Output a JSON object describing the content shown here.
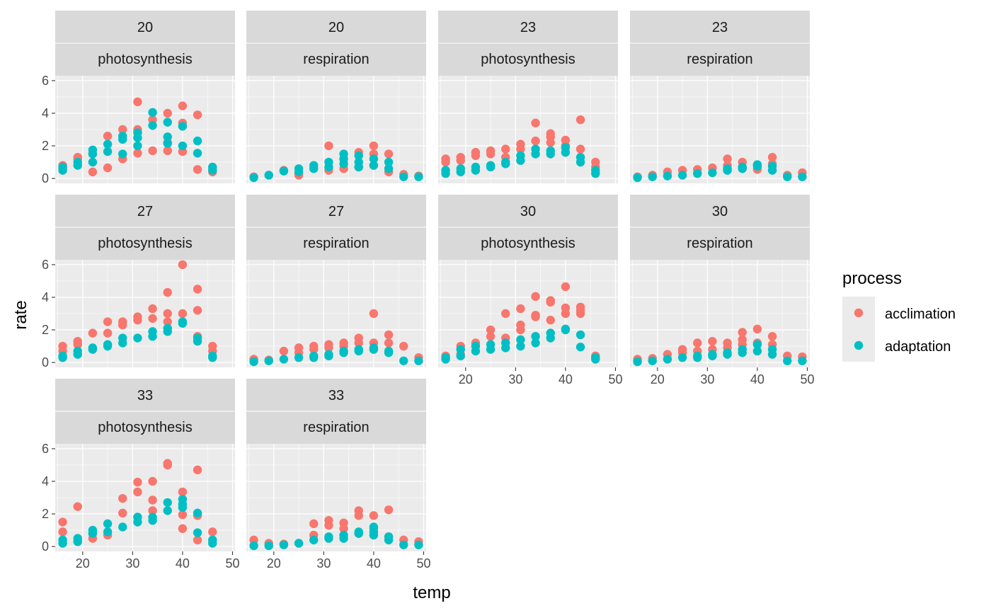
{
  "chart_data": {
    "type": "scatter",
    "xlabel": "temp",
    "ylabel": "rate",
    "xlim": [
      14.5,
      50.5
    ],
    "ylim": [
      -0.3,
      6.3
    ],
    "x_ticks": [
      20,
      30,
      40,
      50
    ],
    "y_ticks": [
      0,
      2,
      4,
      6
    ],
    "grid": true,
    "legend": {
      "title": "process",
      "placement": "right",
      "entries": [
        {
          "name": "acclimation",
          "color": "#F8766D"
        },
        {
          "name": "adaptation",
          "color": "#00BFC4"
        }
      ]
    },
    "colors": {
      "acclimation": "#F8766D",
      "adaptation": "#00BFC4"
    },
    "panels": [
      {
        "row_label": "20",
        "col_label": "photosynthesis",
        "series": [
          {
            "name": "acclimation",
            "x": [
              16,
              16,
              19,
              19,
              22,
              22,
              25,
              25,
              28,
              28,
              31,
              31,
              31,
              34,
              34,
              37,
              37,
              37,
              40,
              40,
              40,
              43,
              43,
              46,
              46
            ],
            "y": [
              0.8,
              0.6,
              1.3,
              1.2,
              0.4,
              1.5,
              2.6,
              0.65,
              3.0,
              1.2,
              4.7,
              3.0,
              1.55,
              1.7,
              3.6,
              4.0,
              1.7,
              2.2,
              4.45,
              3.4,
              1.65,
              3.9,
              0.55,
              0.55,
              0.4
            ]
          },
          {
            "name": "adaptation",
            "x": [
              16,
              16,
              19,
              19,
              22,
              22,
              22,
              25,
              25,
              28,
              28,
              28,
              31,
              31,
              31,
              34,
              34,
              37,
              37,
              37,
              40,
              40,
              43,
              43,
              46,
              46
            ],
            "y": [
              0.7,
              0.5,
              1.0,
              0.8,
              1.75,
              1.5,
              1.0,
              2.1,
              1.65,
              2.6,
              2.4,
              1.5,
              2.8,
              2.5,
              2.0,
              4.05,
              3.25,
              3.45,
              2.55,
              2.15,
              3.2,
              2.0,
              2.3,
              1.55,
              0.7,
              0.5
            ]
          }
        ]
      },
      {
        "row_label": "20",
        "col_label": "respiration",
        "series": [
          {
            "name": "acclimation",
            "x": [
              16,
              19,
              22,
              25,
              25,
              28,
              31,
              31,
              34,
              34,
              37,
              37,
              40,
              40,
              40,
              43,
              43,
              46,
              49
            ],
            "y": [
              0.1,
              0.2,
              0.5,
              0.3,
              0.2,
              0.6,
              2.0,
              0.5,
              1.2,
              0.6,
              1.6,
              0.7,
              2.0,
              1.5,
              0.8,
              1.5,
              0.4,
              0.25,
              0.15
            ]
          },
          {
            "name": "adaptation",
            "x": [
              16,
              19,
              22,
              25,
              25,
              28,
              28,
              31,
              31,
              34,
              34,
              34,
              37,
              37,
              37,
              40,
              40,
              43,
              43,
              46,
              49
            ],
            "y": [
              0.05,
              0.2,
              0.45,
              0.6,
              0.4,
              0.8,
              0.6,
              1.0,
              0.7,
              1.5,
              1.2,
              0.9,
              1.4,
              1.0,
              0.7,
              1.2,
              0.8,
              1.0,
              0.6,
              0.1,
              0.1
            ]
          }
        ]
      },
      {
        "row_label": "23",
        "col_label": "photosynthesis",
        "series": [
          {
            "name": "acclimation",
            "x": [
              16,
              16,
              19,
              19,
              22,
              22,
              25,
              25,
              28,
              28,
              31,
              31,
              34,
              34,
              37,
              37,
              37,
              40,
              40,
              43,
              43,
              46,
              46
            ],
            "y": [
              1.2,
              1.0,
              1.3,
              1.1,
              1.6,
              1.4,
              1.7,
              1.5,
              1.8,
              1.3,
              2.1,
              1.8,
              3.4,
              2.3,
              2.75,
              2.55,
              2.2,
              2.35,
              2.0,
              3.6,
              1.8,
              1.0,
              0.7
            ]
          },
          {
            "name": "adaptation",
            "x": [
              16,
              16,
              19,
              19,
              22,
              22,
              25,
              25,
              28,
              28,
              31,
              31,
              34,
              34,
              37,
              37,
              40,
              40,
              43,
              43,
              46,
              46
            ],
            "y": [
              0.5,
              0.3,
              0.6,
              0.4,
              0.7,
              0.5,
              0.8,
              0.7,
              1.0,
              0.9,
              1.4,
              1.1,
              1.8,
              1.5,
              1.7,
              1.5,
              1.9,
              1.6,
              1.3,
              1.0,
              0.5,
              0.3
            ]
          }
        ]
      },
      {
        "row_label": "23",
        "col_label": "respiration",
        "series": [
          {
            "name": "acclimation",
            "x": [
              16,
              19,
              22,
              25,
              28,
              31,
              34,
              34,
              37,
              37,
              40,
              40,
              43,
              43,
              46,
              49
            ],
            "y": [
              0.1,
              0.2,
              0.4,
              0.5,
              0.55,
              0.65,
              1.2,
              0.8,
              1.0,
              0.7,
              0.8,
              0.55,
              1.3,
              0.9,
              0.2,
              0.35
            ]
          },
          {
            "name": "adaptation",
            "x": [
              16,
              19,
              22,
              25,
              28,
              31,
              34,
              34,
              37,
              37,
              40,
              40,
              43,
              43,
              46,
              49
            ],
            "y": [
              0.05,
              0.1,
              0.15,
              0.2,
              0.3,
              0.35,
              0.6,
              0.5,
              0.7,
              0.6,
              0.85,
              0.75,
              0.75,
              0.5,
              0.1,
              0.1
            ]
          }
        ]
      },
      {
        "row_label": "27",
        "col_label": "photosynthesis",
        "series": [
          {
            "name": "acclimation",
            "x": [
              16,
              16,
              19,
              19,
              22,
              25,
              25,
              28,
              28,
              31,
              31,
              34,
              34,
              37,
              37,
              37,
              40,
              40,
              43,
              43,
              43,
              46,
              46
            ],
            "y": [
              1.0,
              0.7,
              1.3,
              1.1,
              1.8,
              2.5,
              1.8,
              2.5,
              2.3,
              2.8,
              2.6,
              3.3,
              2.7,
              4.3,
              3.0,
              2.5,
              6.0,
              3.0,
              4.5,
              3.2,
              1.6,
              1.0,
              0.7
            ]
          },
          {
            "name": "adaptation",
            "x": [
              16,
              16,
              19,
              19,
              22,
              22,
              25,
              25,
              28,
              28,
              31,
              34,
              34,
              37,
              37,
              40,
              40,
              43,
              43,
              46,
              46
            ],
            "y": [
              0.4,
              0.3,
              0.7,
              0.5,
              0.9,
              0.8,
              1.1,
              1.0,
              1.5,
              1.2,
              1.5,
              1.9,
              1.6,
              2.1,
              1.9,
              2.5,
              2.4,
              1.5,
              1.3,
              0.4,
              0.3
            ]
          }
        ]
      },
      {
        "row_label": "27",
        "col_label": "respiration",
        "series": [
          {
            "name": "acclimation",
            "x": [
              16,
              19,
              22,
              25,
              25,
              28,
              28,
              31,
              31,
              34,
              34,
              37,
              37,
              40,
              40,
              43,
              43,
              46,
              49
            ],
            "y": [
              0.2,
              0.15,
              0.7,
              0.9,
              0.6,
              1.0,
              0.8,
              1.1,
              0.9,
              1.2,
              1.0,
              1.5,
              1.2,
              3.0,
              1.2,
              1.7,
              1.2,
              1.0,
              0.3
            ]
          },
          {
            "name": "adaptation",
            "x": [
              16,
              19,
              22,
              25,
              28,
              28,
              31,
              31,
              34,
              34,
              37,
              37,
              40,
              40,
              43,
              43,
              46,
              49
            ],
            "y": [
              0.05,
              0.1,
              0.2,
              0.3,
              0.4,
              0.3,
              0.5,
              0.4,
              0.7,
              0.6,
              0.8,
              0.7,
              0.9,
              0.8,
              0.7,
              0.6,
              0.1,
              0.1
            ]
          }
        ]
      },
      {
        "row_label": "30",
        "col_label": "photosynthesis",
        "series": [
          {
            "name": "acclimation",
            "x": [
              16,
              19,
              19,
              22,
              25,
              25,
              28,
              28,
              31,
              31,
              31,
              34,
              34,
              34,
              37,
              37,
              37,
              40,
              40,
              40,
              43,
              43,
              43,
              46
            ],
            "y": [
              0.4,
              1.0,
              0.5,
              1.2,
              2.0,
              1.6,
              3.0,
              1.5,
              3.3,
              2.3,
              2.0,
              4.05,
              2.9,
              2.8,
              3.8,
              3.7,
              2.6,
              4.65,
              3.35,
              3.0,
              3.4,
              3.2,
              3.0,
              0.4
            ]
          },
          {
            "name": "adaptation",
            "x": [
              16,
              16,
              19,
              19,
              22,
              22,
              25,
              25,
              28,
              28,
              31,
              31,
              34,
              34,
              37,
              37,
              40,
              40,
              43,
              43,
              46,
              46
            ],
            "y": [
              0.3,
              0.2,
              0.8,
              0.4,
              1.0,
              0.7,
              1.1,
              0.8,
              1.2,
              0.9,
              1.4,
              1.0,
              1.6,
              1.2,
              1.8,
              1.5,
              2.05,
              2.0,
              1.7,
              0.95,
              0.3,
              0.2
            ]
          }
        ]
      },
      {
        "row_label": "30",
        "col_label": "respiration",
        "series": [
          {
            "name": "acclimation",
            "x": [
              16,
              19,
              22,
              25,
              25,
              28,
              28,
              31,
              31,
              34,
              34,
              37,
              37,
              37,
              40,
              40,
              43,
              43,
              46,
              49
            ],
            "y": [
              0.2,
              0.25,
              0.5,
              0.8,
              0.6,
              1.2,
              0.7,
              1.3,
              0.8,
              1.2,
              0.9,
              1.85,
              1.4,
              1.1,
              2.05,
              1.2,
              1.6,
              1.1,
              0.4,
              0.35
            ]
          },
          {
            "name": "adaptation",
            "x": [
              16,
              19,
              22,
              25,
              28,
              28,
              31,
              31,
              34,
              34,
              37,
              37,
              40,
              40,
              43,
              43,
              46,
              49
            ],
            "y": [
              0.05,
              0.1,
              0.2,
              0.3,
              0.4,
              0.3,
              0.5,
              0.4,
              0.6,
              0.5,
              0.8,
              0.6,
              1.1,
              0.7,
              0.8,
              0.5,
              0.1,
              0.1
            ]
          }
        ]
      },
      {
        "row_label": "33",
        "col_label": "photosynthesis",
        "series": [
          {
            "name": "acclimation",
            "x": [
              16,
              16,
              19,
              19,
              22,
              22,
              25,
              28,
              28,
              31,
              31,
              31,
              34,
              34,
              34,
              37,
              37,
              40,
              40,
              40,
              43,
              43,
              43,
              46,
              46
            ],
            "y": [
              1.5,
              0.9,
              2.45,
              0.3,
              0.8,
              0.5,
              0.7,
              2.95,
              2.05,
              3.95,
              3.35,
              1.8,
              4.0,
              2.85,
              2.2,
              5.1,
              5.0,
              3.35,
              1.95,
              1.1,
              4.7,
              1.9,
              0.4,
              0.9,
              0.4
            ]
          },
          {
            "name": "adaptation",
            "x": [
              16,
              16,
              19,
              19,
              22,
              22,
              25,
              25,
              28,
              31,
              31,
              34,
              34,
              37,
              37,
              40,
              40,
              40,
              43,
              43,
              46,
              46
            ],
            "y": [
              0.4,
              0.2,
              0.5,
              0.3,
              1.0,
              0.8,
              1.4,
              0.9,
              1.2,
              1.8,
              1.5,
              1.8,
              1.6,
              2.7,
              2.2,
              2.9,
              2.6,
              2.4,
              2.05,
              0.85,
              0.4,
              0.2
            ]
          }
        ]
      },
      {
        "row_label": "33",
        "col_label": "respiration",
        "series": [
          {
            "name": "acclimation",
            "x": [
              16,
              19,
              22,
              25,
              28,
              28,
              31,
              31,
              34,
              34,
              37,
              37,
              37,
              40,
              40,
              43,
              43,
              46,
              49
            ],
            "y": [
              0.4,
              0.2,
              0.15,
              0.2,
              1.4,
              0.7,
              1.6,
              1.3,
              1.45,
              1.1,
              2.2,
              1.9,
              0.8,
              1.9,
              1.1,
              2.25,
              0.6,
              0.4,
              0.3
            ]
          },
          {
            "name": "adaptation",
            "x": [
              16,
              19,
              22,
              25,
              28,
              31,
              31,
              34,
              34,
              37,
              37,
              40,
              40,
              40,
              43,
              43,
              46,
              49
            ],
            "y": [
              0.05,
              0.05,
              0.1,
              0.2,
              0.4,
              0.6,
              0.5,
              0.7,
              0.5,
              0.9,
              0.8,
              1.2,
              0.9,
              0.7,
              0.6,
              0.4,
              0.1,
              0.1
            ]
          }
        ]
      }
    ]
  }
}
